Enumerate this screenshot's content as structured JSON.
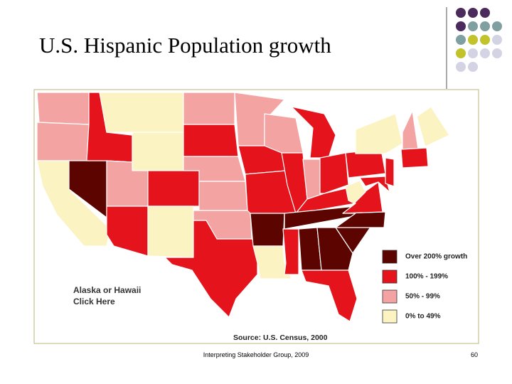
{
  "header": {
    "title": "U.S. Hispanic Population growth"
  },
  "map": {
    "legend": [
      {
        "label": "Over 200% growth",
        "color": "#5c0500"
      },
      {
        "label": "100% - 199%",
        "color": "#e5141c"
      },
      {
        "label": "50% - 99%",
        "color": "#f4a3a3"
      },
      {
        "label": "0% to 49%",
        "color": "#fbf3c2"
      }
    ],
    "link": [
      "Alaska or Hawaii",
      "Click Here"
    ],
    "source": "Source: U.S. Census, 2000"
  },
  "footer": {
    "text": "Interpreting Stakeholder Group, 2009",
    "page": "60"
  }
}
